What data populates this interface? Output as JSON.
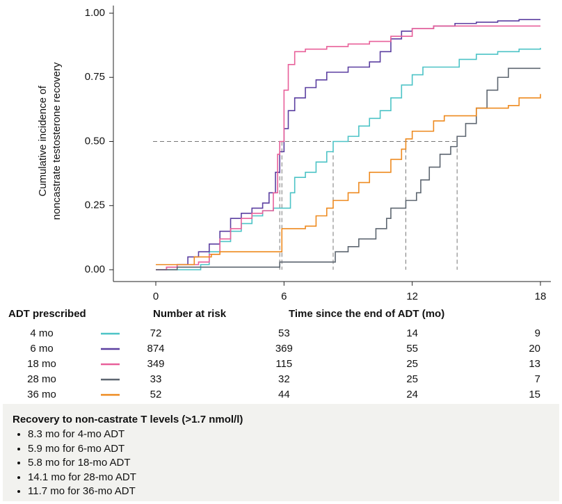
{
  "chart_data": {
    "type": "step",
    "ylabel": [
      "Cumulative incidence of",
      "noncastrate testosterone recovery"
    ],
    "xlabel": "Time since the end of ADT (mo)",
    "xlim": [
      -2,
      18.4
    ],
    "ylim": [
      -0.05,
      1.02
    ],
    "xticks": [
      0,
      6,
      12,
      18
    ],
    "yticks": [
      {
        "value": 0,
        "label": "0.00"
      },
      {
        "value": 0.25,
        "label": "0.25"
      },
      {
        "value": 0.5,
        "label": "0.50"
      },
      {
        "value": 0.75,
        "label": "0.75"
      },
      {
        "value": 1,
        "label": "1.00"
      }
    ],
    "risk_table": {
      "legend_title": "ADT prescribed",
      "title": "Number at risk"
    },
    "series": [
      {
        "name": "4 mo",
        "color": "#4cc3c6",
        "median": 8.3,
        "at_risk": [
          72,
          53,
          14,
          9
        ],
        "x": [
          0,
          2.1,
          2.5,
          3,
          3.5,
          4,
          4.5,
          5,
          5.5,
          6.3,
          6.5,
          7,
          7.5,
          8,
          8.3,
          9,
          9.5,
          10,
          10.5,
          11,
          11.5,
          12,
          12.5,
          14.2,
          15,
          16,
          17,
          18
        ],
        "values": [
          0,
          0.02,
          0.07,
          0.11,
          0.15,
          0.18,
          0.21,
          0.23,
          0.24,
          0.3,
          0.36,
          0.38,
          0.42,
          0.46,
          0.5,
          0.52,
          0.56,
          0.59,
          0.62,
          0.67,
          0.72,
          0.76,
          0.79,
          0.82,
          0.84,
          0.85,
          0.86,
          0.865
        ]
      },
      {
        "name": "6 mo",
        "color": "#5b3fa0",
        "median": 5.9,
        "at_risk": [
          874,
          369,
          55,
          20
        ],
        "x": [
          0,
          0.5,
          1,
          1.5,
          2,
          2.5,
          3,
          3.5,
          4,
          4.5,
          5,
          5.3,
          5.6,
          5.8,
          6,
          6.2,
          6.5,
          7,
          7.5,
          8,
          9,
          10,
          10.5,
          11,
          11.5,
          12,
          13,
          14,
          15,
          16,
          17,
          18
        ],
        "values": [
          0,
          0.01,
          0.02,
          0.05,
          0.07,
          0.1,
          0.15,
          0.2,
          0.22,
          0.24,
          0.26,
          0.3,
          0.38,
          0.46,
          0.55,
          0.62,
          0.67,
          0.71,
          0.74,
          0.77,
          0.79,
          0.81,
          0.85,
          0.9,
          0.93,
          0.94,
          0.95,
          0.96,
          0.965,
          0.97,
          0.975,
          0.975
        ]
      },
      {
        "name": "18 mo",
        "color": "#e8609a",
        "median": 5.8,
        "at_risk": [
          349,
          115,
          25,
          13
        ],
        "x": [
          0,
          0.5,
          1,
          2,
          2.5,
          3,
          3.5,
          4,
          4.5,
          5,
          5.5,
          5.7,
          5.8,
          6,
          6.2,
          6.5,
          7,
          8,
          9,
          10,
          11,
          12,
          13,
          18
        ],
        "values": [
          0,
          0.01,
          0.02,
          0.03,
          0.06,
          0.12,
          0.16,
          0.2,
          0.22,
          0.23,
          0.3,
          0.45,
          0.5,
          0.7,
          0.8,
          0.85,
          0.86,
          0.87,
          0.88,
          0.89,
          0.91,
          0.94,
          0.95,
          0.95
        ]
      },
      {
        "name": "28 mo",
        "color": "#5d6670",
        "median": 14.1,
        "at_risk": [
          33,
          32,
          25,
          7
        ],
        "x": [
          0,
          1,
          5.8,
          8.4,
          9,
          9.5,
          10.3,
          10.8,
          11,
          11.7,
          12.2,
          12.4,
          12.8,
          13.3,
          13.8,
          14.1,
          14.5,
          15,
          15.5,
          16,
          16.5,
          18
        ],
        "values": [
          0,
          0.01,
          0.03,
          0.07,
          0.09,
          0.12,
          0.16,
          0.2,
          0.24,
          0.27,
          0.3,
          0.35,
          0.4,
          0.45,
          0.48,
          0.52,
          0.57,
          0.63,
          0.7,
          0.75,
          0.785,
          0.785
        ]
      },
      {
        "name": "36 mo",
        "color": "#ee8a1f",
        "median": 11.7,
        "at_risk": [
          52,
          44,
          24,
          15
        ],
        "x": [
          0,
          1.8,
          2.6,
          3,
          5.9,
          7,
          7.5,
          8,
          8.3,
          9,
          9.5,
          10,
          11,
          11.5,
          11.7,
          12,
          13,
          13.5,
          15,
          16.5,
          17,
          18
        ],
        "values": [
          0.02,
          0.05,
          0.06,
          0.07,
          0.16,
          0.17,
          0.21,
          0.24,
          0.27,
          0.3,
          0.34,
          0.38,
          0.43,
          0.47,
          0.51,
          0.54,
          0.58,
          0.6,
          0.63,
          0.64,
          0.67,
          0.685
        ]
      }
    ]
  },
  "notes": {
    "title": "Recovery to non-castrate T levels (>1.7 nmol/l)",
    "items": [
      "8.3 mo for 4-mo ADT",
      "5.9 mo for 6-mo ADT",
      "5.8 mo for 18-mo ADT",
      "14.1 mo for 28-mo ADT",
      "11.7 mo for 36-mo ADT"
    ]
  }
}
